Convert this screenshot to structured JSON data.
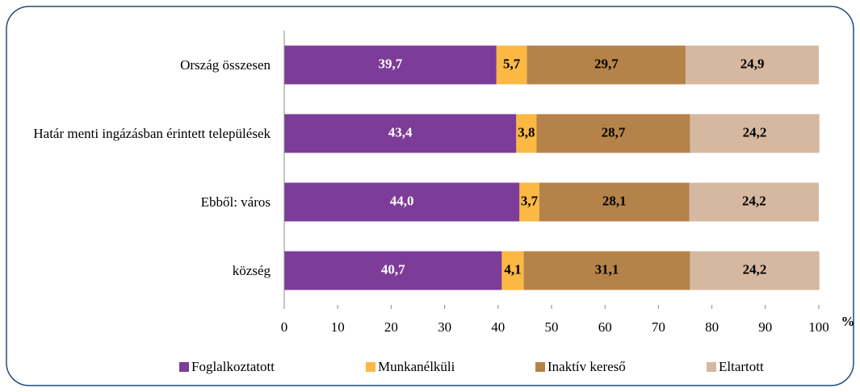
{
  "chart_data": {
    "type": "stacked_barh",
    "categories": [
      "Ország összesen",
      "Határ menti ingázásban érintett települések",
      "Ebből:  város",
      "község"
    ],
    "series": [
      {
        "name": "Foglalkoztatott",
        "color": "#7d3c98",
        "values": [
          39.7,
          43.4,
          44.0,
          40.7
        ],
        "value_labels": [
          "39,7",
          "43,4",
          "44,0",
          "40,7"
        ]
      },
      {
        "name": "Munkanélküli",
        "color": "#fbb843",
        "values": [
          5.7,
          3.8,
          3.7,
          4.1
        ],
        "value_labels": [
          "5,7",
          "3,8",
          "3,7",
          "4,1"
        ]
      },
      {
        "name": "Inaktív kereső",
        "color": "#b5834a",
        "values": [
          29.7,
          28.7,
          28.1,
          31.1
        ],
        "value_labels": [
          "29,7",
          "28,7",
          "28,1",
          "31,1"
        ]
      },
      {
        "name": "Eltartott",
        "color": "#d6b8a0",
        "values": [
          24.9,
          24.2,
          24.2,
          24.2
        ],
        "value_labels": [
          "24,9",
          "24,2",
          "24,2",
          "24,2"
        ]
      }
    ],
    "xlim": [
      0,
      100
    ],
    "xticks": [
      0,
      10,
      20,
      30,
      40,
      50,
      60,
      70,
      80,
      90,
      100
    ],
    "x_label": "%",
    "legend": "bottom"
  }
}
